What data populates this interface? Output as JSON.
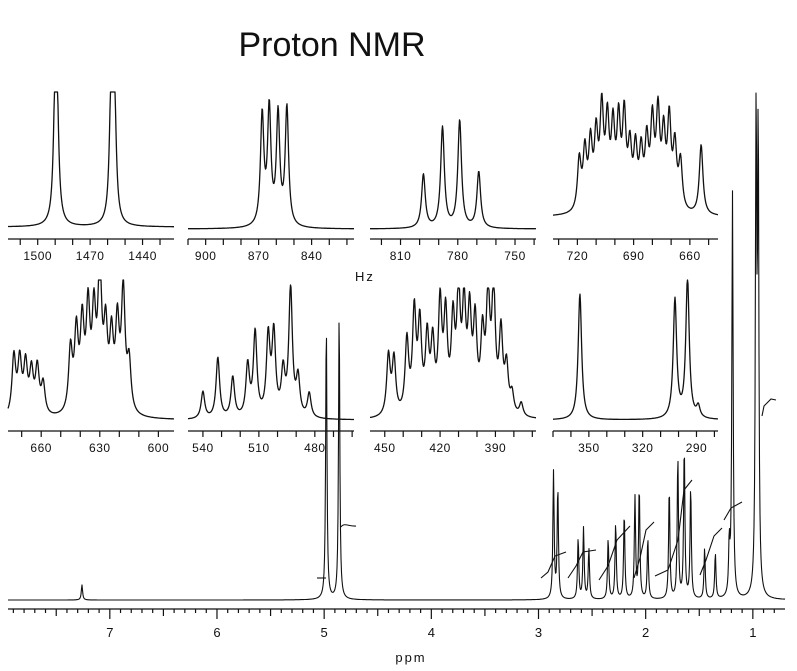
{
  "title": "Proton NMR",
  "chart_data": {
    "type": "line",
    "title": "Proton NMR",
    "main_spectrum": {
      "xlabel": "ppm",
      "x_ticks": [
        7,
        6,
        5,
        4,
        3,
        2,
        1
      ],
      "xlim": [
        7.95,
        0.7
      ],
      "ylim": [
        0,
        1
      ],
      "peaks": [
        {
          "ppm": 7.26,
          "height": 0.03
        },
        {
          "ppm": 4.98,
          "height": 0.55
        },
        {
          "ppm": 4.86,
          "height": 0.57
        },
        {
          "ppm": 2.86,
          "height": 0.25
        },
        {
          "ppm": 2.82,
          "height": 0.22
        },
        {
          "ppm": 2.63,
          "height": 0.12
        },
        {
          "ppm": 2.58,
          "height": 0.14
        },
        {
          "ppm": 2.53,
          "height": 0.1
        },
        {
          "ppm": 2.35,
          "height": 0.12
        },
        {
          "ppm": 2.28,
          "height": 0.15
        },
        {
          "ppm": 2.2,
          "height": 0.17
        },
        {
          "ppm": 2.1,
          "height": 0.2
        },
        {
          "ppm": 2.06,
          "height": 0.22
        },
        {
          "ppm": 1.98,
          "height": 0.12
        },
        {
          "ppm": 1.78,
          "height": 0.22
        },
        {
          "ppm": 1.7,
          "height": 0.28
        },
        {
          "ppm": 1.64,
          "height": 0.3
        },
        {
          "ppm": 1.58,
          "height": 0.22
        },
        {
          "ppm": 1.45,
          "height": 0.1
        },
        {
          "ppm": 1.35,
          "height": 0.09
        },
        {
          "ppm": 1.22,
          "height": 0.1
        },
        {
          "ppm": 1.19,
          "height": 0.8
        },
        {
          "ppm": 0.97,
          "height": 1.0
        },
        {
          "ppm": 0.95,
          "height": 0.9
        }
      ]
    },
    "insets": [
      {
        "x_ticks": [
          1500,
          1470,
          1440
        ],
        "xlim": [
          1517,
          1422
        ],
        "peaks": [
          {
            "hz": 1490,
            "h": 0.82
          },
          {
            "hz": 1489,
            "h": 0.8
          },
          {
            "hz": 1458,
            "h": 0.95
          },
          {
            "hz": 1456,
            "h": 0.85
          }
        ]
      },
      {
        "x_ticks": [
          900,
          870,
          840
        ],
        "xlim": [
          910,
          816
        ],
        "peaks": [
          {
            "hz": 868,
            "h": 0.82
          },
          {
            "hz": 864,
            "h": 0.86
          },
          {
            "hz": 859,
            "h": 0.82
          },
          {
            "hz": 854,
            "h": 0.88
          }
        ]
      },
      {
        "x_ticks": [
          810,
          780,
          750
        ],
        "xlim": [
          826,
          739
        ],
        "peaks": [
          {
            "hz": 798,
            "h": 0.4
          },
          {
            "hz": 788,
            "h": 0.75
          },
          {
            "hz": 779,
            "h": 0.8
          },
          {
            "hz": 769,
            "h": 0.42
          }
        ]
      },
      {
        "x_ticks": [
          720,
          690,
          660
        ],
        "xlim": [
          733,
          645
        ],
        "peaks": [
          {
            "hz": 719,
            "h": 0.4
          },
          {
            "hz": 716,
            "h": 0.45
          },
          {
            "hz": 713,
            "h": 0.5
          },
          {
            "hz": 710,
            "h": 0.55
          },
          {
            "hz": 707,
            "h": 0.75
          },
          {
            "hz": 704,
            "h": 0.65
          },
          {
            "hz": 701,
            "h": 0.6
          },
          {
            "hz": 698,
            "h": 0.65
          },
          {
            "hz": 695,
            "h": 0.7
          },
          {
            "hz": 692,
            "h": 0.45
          },
          {
            "hz": 689,
            "h": 0.45
          },
          {
            "hz": 686,
            "h": 0.42
          },
          {
            "hz": 683,
            "h": 0.5
          },
          {
            "hz": 680,
            "h": 0.65
          },
          {
            "hz": 677,
            "h": 0.72
          },
          {
            "hz": 674,
            "h": 0.55
          },
          {
            "hz": 671,
            "h": 0.68
          },
          {
            "hz": 668,
            "h": 0.48
          },
          {
            "hz": 665,
            "h": 0.38
          },
          {
            "hz": 654,
            "h": 0.55
          }
        ]
      },
      {
        "x_ticks": [
          660,
          630,
          600
        ],
        "xlim": [
          677,
          592
        ],
        "peaks": [
          {
            "hz": 674,
            "h": 0.42
          },
          {
            "hz": 671,
            "h": 0.38
          },
          {
            "hz": 668,
            "h": 0.35
          },
          {
            "hz": 665,
            "h": 0.3
          },
          {
            "hz": 662,
            "h": 0.33
          },
          {
            "hz": 659,
            "h": 0.22
          },
          {
            "hz": 645,
            "h": 0.45
          },
          {
            "hz": 642,
            "h": 0.55
          },
          {
            "hz": 639,
            "h": 0.6
          },
          {
            "hz": 636,
            "h": 0.7
          },
          {
            "hz": 633,
            "h": 0.65
          },
          {
            "hz": 630,
            "h": 1.0
          },
          {
            "hz": 627,
            "h": 0.55
          },
          {
            "hz": 624,
            "h": 0.5
          },
          {
            "hz": 621,
            "h": 0.6
          },
          {
            "hz": 618,
            "h": 0.85
          },
          {
            "hz": 615,
            "h": 0.35
          }
        ]
      },
      {
        "x_ticks": [
          540,
          510,
          480
        ],
        "xlim": [
          548,
          459
        ],
        "peaks": [
          {
            "hz": 540,
            "h": 0.2
          },
          {
            "hz": 532,
            "h": 0.45
          },
          {
            "hz": 524,
            "h": 0.3
          },
          {
            "hz": 516,
            "h": 0.38
          },
          {
            "hz": 512,
            "h": 0.62
          },
          {
            "hz": 505,
            "h": 0.58
          },
          {
            "hz": 502,
            "h": 0.6
          },
          {
            "hz": 497,
            "h": 0.32
          },
          {
            "hz": 493,
            "h": 0.95
          },
          {
            "hz": 489,
            "h": 0.28
          },
          {
            "hz": 483,
            "h": 0.18
          }
        ]
      },
      {
        "x_ticks": [
          450,
          420,
          390
        ],
        "xlim": [
          458,
          368
        ],
        "peaks": [
          {
            "hz": 448,
            "h": 0.45
          },
          {
            "hz": 445,
            "h": 0.42
          },
          {
            "hz": 438,
            "h": 0.55
          },
          {
            "hz": 434,
            "h": 0.75
          },
          {
            "hz": 431,
            "h": 0.65
          },
          {
            "hz": 427,
            "h": 0.55
          },
          {
            "hz": 424,
            "h": 0.5
          },
          {
            "hz": 420,
            "h": 0.8
          },
          {
            "hz": 417,
            "h": 0.7
          },
          {
            "hz": 413,
            "h": 0.65
          },
          {
            "hz": 410,
            "h": 0.85
          },
          {
            "hz": 407,
            "h": 0.75
          },
          {
            "hz": 404,
            "h": 0.7
          },
          {
            "hz": 401,
            "h": 0.65
          },
          {
            "hz": 397,
            "h": 0.55
          },
          {
            "hz": 394,
            "h": 0.85
          },
          {
            "hz": 391,
            "h": 0.9
          },
          {
            "hz": 387,
            "h": 0.6
          },
          {
            "hz": 384,
            "h": 0.35
          },
          {
            "hz": 381,
            "h": 0.15
          },
          {
            "hz": 376,
            "h": 0.1
          }
        ]
      },
      {
        "x_ticks": [
          350,
          320,
          290
        ],
        "xlim": [
          370,
          278
        ],
        "peaks": [
          {
            "hz": 355,
            "h": 0.9
          },
          {
            "hz": 302,
            "h": 0.85
          },
          {
            "hz": 295,
            "h": 1.0
          },
          {
            "hz": 289,
            "h": 0.08
          }
        ]
      }
    ],
    "inset_xlabel": "Hz"
  }
}
